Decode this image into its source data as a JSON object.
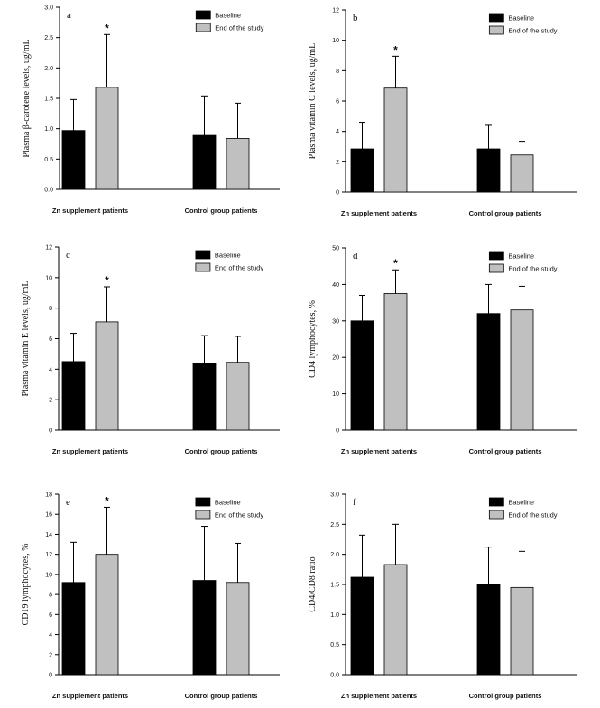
{
  "figure": {
    "legend": {
      "baseline": "Baseline",
      "end": "End of the study"
    }
  },
  "colors": {
    "baseline": "#000000",
    "end": "#c0c0c0",
    "axis": "#000000",
    "error": "#000000"
  },
  "chart_data": [
    {
      "type": "bar",
      "panel": "a",
      "categories": [
        "Zn supplement patients",
        "Control group patients"
      ],
      "series": [
        {
          "name": "Baseline",
          "values": [
            0.97,
            0.89
          ],
          "errors": [
            0.51,
            0.65
          ]
        },
        {
          "name": "End of the study",
          "values": [
            1.68,
            0.84
          ],
          "errors": [
            0.87,
            0.58
          ]
        }
      ],
      "ylabel": "Plasma β-carotene levels, ug/mL",
      "ylim": [
        0,
        3.0
      ],
      "yticks": [
        "0.0",
        "0.5",
        "1.0",
        "1.5",
        "2.0",
        "2.5",
        "3.0"
      ],
      "significance": "*",
      "legend_position": "top-right"
    },
    {
      "type": "bar",
      "panel": "b",
      "categories": [
        "Zn supplement patients",
        "Control group patients"
      ],
      "series": [
        {
          "name": "Baseline",
          "values": [
            2.85,
            2.85
          ],
          "errors": [
            1.75,
            1.55
          ]
        },
        {
          "name": "End of the study",
          "values": [
            6.85,
            2.45
          ],
          "errors": [
            2.1,
            0.9
          ]
        }
      ],
      "ylabel": "Plasma vitamin C levels, ug/mL",
      "ylim": [
        0,
        12
      ],
      "yticks": [
        "0",
        "2",
        "4",
        "6",
        "8",
        "10",
        "12"
      ],
      "significance": "*",
      "legend_position": "top-right"
    },
    {
      "type": "bar",
      "panel": "c",
      "categories": [
        "Zn supplement patients",
        "Control group patients"
      ],
      "series": [
        {
          "name": "Baseline",
          "values": [
            4.5,
            4.4
          ],
          "errors": [
            1.85,
            1.8
          ]
        },
        {
          "name": "End of the study",
          "values": [
            7.1,
            4.45
          ],
          "errors": [
            2.3,
            1.7
          ]
        }
      ],
      "ylabel": "Plasma vitamin E levels, ug/mL",
      "ylim": [
        0,
        12
      ],
      "yticks": [
        "0",
        "2",
        "4",
        "6",
        "8",
        "10",
        "12"
      ],
      "significance": "*",
      "legend_position": "top-right"
    },
    {
      "type": "bar",
      "panel": "d",
      "categories": [
        "Zn supplement patients",
        "Control group patients"
      ],
      "series": [
        {
          "name": "Baseline",
          "values": [
            30.0,
            32.0
          ],
          "errors": [
            7.0,
            8.0
          ]
        },
        {
          "name": "End of the study",
          "values": [
            37.5,
            33.0
          ],
          "errors": [
            6.5,
            6.5
          ]
        }
      ],
      "ylabel": "CD4 lymphocytes, %",
      "ylim": [
        0,
        50
      ],
      "yticks": [
        "0",
        "10",
        "20",
        "30",
        "40",
        "50"
      ],
      "significance": "*",
      "legend_position": "top-right"
    },
    {
      "type": "bar",
      "panel": "e",
      "categories": [
        "Zn supplement patients",
        "Control group patients"
      ],
      "series": [
        {
          "name": "Baseline",
          "values": [
            9.2,
            9.4
          ],
          "errors": [
            4.0,
            5.4
          ]
        },
        {
          "name": "End of the study",
          "values": [
            12.0,
            9.2
          ],
          "errors": [
            4.7,
            3.9
          ]
        }
      ],
      "ylabel": "CD19 lymphocytes, %",
      "ylim": [
        0,
        18
      ],
      "yticks": [
        "0",
        "2",
        "4",
        "6",
        "8",
        "10",
        "12",
        "14",
        "16",
        "18"
      ],
      "significance": "*",
      "legend_position": "top-right"
    },
    {
      "type": "bar",
      "panel": "f",
      "categories": [
        "Zn supplement patients",
        "Control group patients"
      ],
      "series": [
        {
          "name": "Baseline",
          "values": [
            1.62,
            1.5
          ],
          "errors": [
            0.7,
            0.62
          ]
        },
        {
          "name": "End of the study",
          "values": [
            1.83,
            1.45
          ],
          "errors": [
            0.67,
            0.6
          ]
        }
      ],
      "ylabel": "CD4/CD8 ratio",
      "ylim": [
        0,
        3.0
      ],
      "yticks": [
        "0.0",
        "0.5",
        "1.0",
        "1.5",
        "2.0",
        "2.5",
        "3.0"
      ],
      "significance": "",
      "legend_position": "top-right"
    }
  ]
}
